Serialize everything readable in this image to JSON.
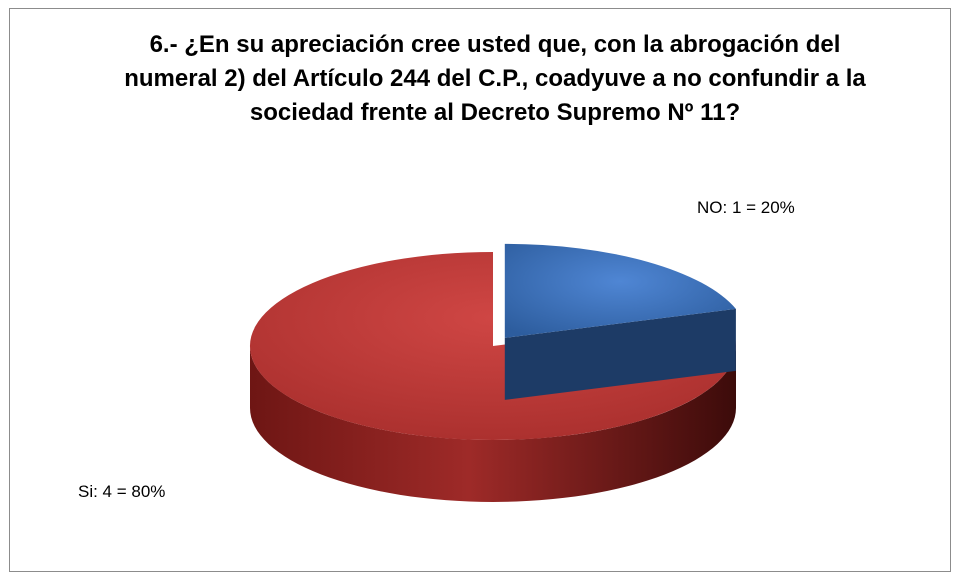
{
  "chart_data": {
    "type": "pie3d",
    "title": "6.- ¿En su apreciación cree usted que, con la abrogación del numeral 2) del Artículo 244 del C.P., coadyuve a no confundir a la sociedad frente al Decreto Supremo Nº 11?",
    "values": [
      20,
      80
    ],
    "value_labels": [
      "NO: 1 = 20%",
      "Si: 4 = 80%"
    ],
    "colors": [
      "#3f74c0",
      "#c03a38"
    ]
  }
}
